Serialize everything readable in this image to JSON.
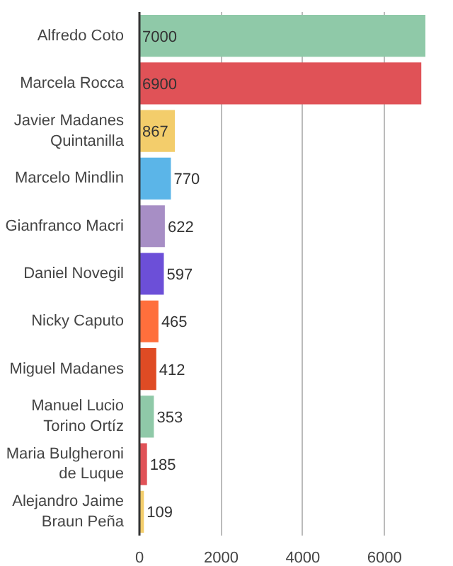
{
  "chart_data": {
    "type": "bar",
    "orientation": "horizontal",
    "categories": [
      "Alfredo Coto",
      "Marcela Rocca",
      "Javier Madanes Quintanilla",
      "Marcelo Mindlin",
      "Gianfranco Macri",
      "Daniel Novegil",
      "Nicky Caputo",
      "Miguel Madanes",
      "Manuel Lucio Torino Ortíz",
      "Maria Bulgheroni de Luque",
      "Alejandro Jaime Braun Peña"
    ],
    "values": [
      7000,
      6900,
      867,
      770,
      622,
      597,
      465,
      412,
      353,
      185,
      109
    ],
    "colors": [
      "#8fc9a8",
      "#e05257",
      "#f3cd6b",
      "#5bb5e8",
      "#a78ec5",
      "#6c4fd8",
      "#ff6f3c",
      "#df4b24",
      "#8fc9a8",
      "#e05257",
      "#f3cd6b"
    ],
    "xlim": [
      0,
      7000
    ],
    "xticks": [
      0,
      2000,
      4000,
      6000
    ],
    "grid": "x",
    "data_labels": true
  }
}
